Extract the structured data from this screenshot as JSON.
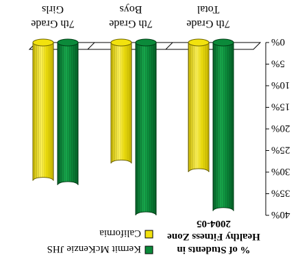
{
  "colors": {
    "kermit": "#0b8a3a",
    "kermit_dark": "#056128",
    "kermit_light": "#18a84c",
    "california": "#f2e20e",
    "california_dark": "#c9b800",
    "california_light": "#fff35a"
  },
  "chart_data": {
    "type": "bar",
    "title": "% of Students in Healthy Fitness Zone 2004-05",
    "title_lines": [
      "% of Students in",
      "Healthy Fitness Zone",
      "2004-05"
    ],
    "categories": [
      "7th Grade Total",
      "7th Grade Boys",
      "7th Grade Girls"
    ],
    "category_lines": [
      [
        "7th Grade",
        "Total"
      ],
      [
        "7th Grade",
        "Boys"
      ],
      [
        "7th Grade",
        "Girls"
      ]
    ],
    "series": [
      {
        "name": "Kermit McKenzie JHS",
        "values": [
          39,
          40,
          33
        ]
      },
      {
        "name": "California",
        "values": [
          30,
          28,
          32
        ]
      }
    ],
    "ylim": [
      0,
      40
    ],
    "yticks": [
      "0%",
      "5%",
      "10%",
      "15%",
      "20%",
      "25%",
      "30%",
      "35%",
      "40%"
    ],
    "legend_position": "bottom-right",
    "orientation": "rotated-180"
  }
}
